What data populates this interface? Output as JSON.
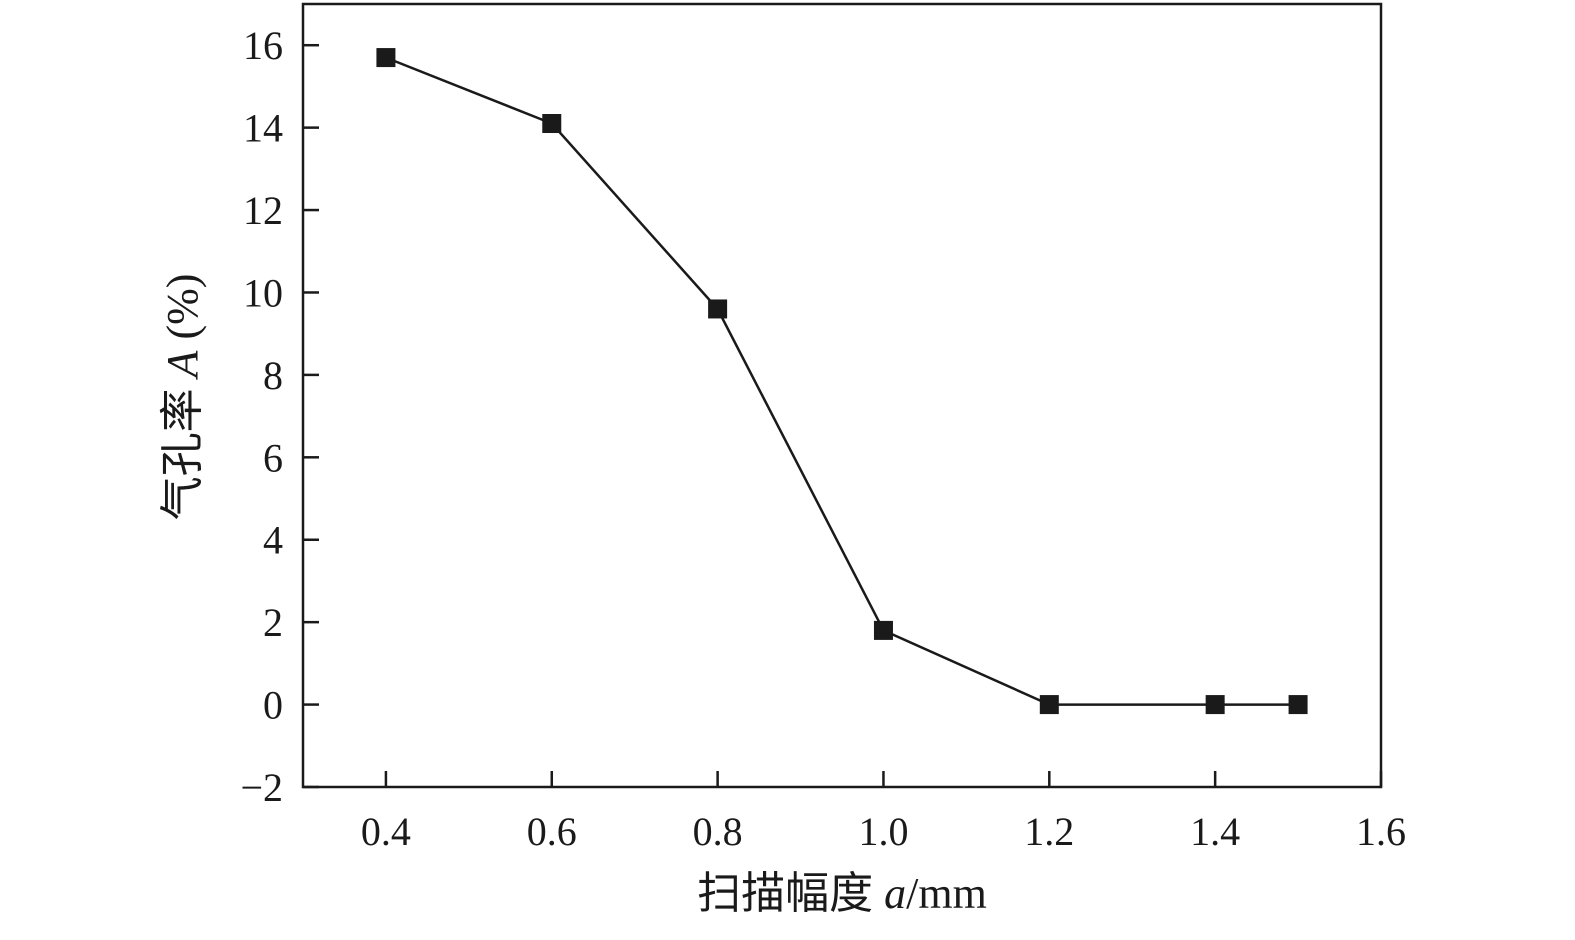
{
  "chart_data": {
    "type": "line",
    "title": "",
    "xlabel": {
      "prefix": "扫描幅度 ",
      "symbol": "a",
      "suffix": "/mm"
    },
    "ylabel": {
      "prefix": "气孔率 ",
      "symbol": "A",
      "suffix": " (%)"
    },
    "xlim": [
      0.3,
      1.6
    ],
    "ylim": [
      -2,
      17
    ],
    "x_ticks": [
      0.4,
      0.6,
      0.8,
      1.0,
      1.2,
      1.4,
      1.6
    ],
    "x_tick_labels": [
      "0.4",
      "0.6",
      "0.8",
      "1.0",
      "1.2",
      "1.4",
      "1.6"
    ],
    "y_ticks": [
      -2,
      0,
      2,
      4,
      6,
      8,
      10,
      12,
      14,
      16
    ],
    "y_tick_labels": [
      "−2",
      "0",
      "2",
      "4",
      "6",
      "8",
      "10",
      "12",
      "14",
      "16"
    ],
    "grid": false,
    "series": [
      {
        "x": [
          0.4,
          0.6,
          0.8,
          1.0,
          1.2,
          1.4,
          1.5
        ],
        "values": [
          15.7,
          14.1,
          9.6,
          1.8,
          0.0,
          0.0,
          0.0
        ],
        "marker": "square",
        "color": "#1a1a1a"
      }
    ]
  }
}
